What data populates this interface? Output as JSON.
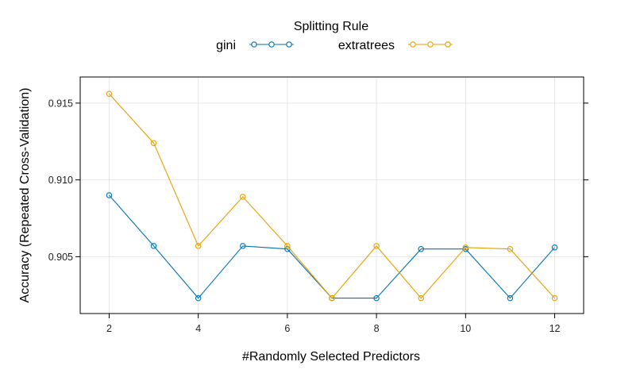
{
  "chart_data": {
    "type": "line",
    "legend_title": "Splitting Rule",
    "legend_position": "top-center",
    "xlabel": "#Randomly Selected Predictors",
    "ylabel": "Accuracy (Repeated Cross-Validation)",
    "x": [
      2,
      3,
      4,
      5,
      6,
      7,
      8,
      9,
      10,
      11,
      12
    ],
    "xlim": [
      1.35,
      12.65
    ],
    "ylim": [
      0.9013,
      0.9167
    ],
    "xticks": [
      "2",
      "4",
      "6",
      "8",
      "10",
      "12"
    ],
    "yticks": [
      "0.905",
      "0.910",
      "0.915"
    ],
    "grid": true,
    "series": [
      {
        "name": "gini",
        "color": "#0072B2",
        "marker": "open-circle",
        "values": [
          0.909,
          0.9057,
          0.9023,
          0.9057,
          0.9055,
          0.9023,
          0.9023,
          0.9055,
          0.9055,
          0.9023,
          0.9056
        ]
      },
      {
        "name": "extratrees",
        "color": "#E69F00",
        "marker": "open-circle",
        "values": [
          0.9156,
          0.9124,
          0.9057,
          0.9089,
          0.9057,
          0.9023,
          0.9057,
          0.9023,
          0.9056,
          0.9055,
          0.9023
        ]
      }
    ]
  }
}
